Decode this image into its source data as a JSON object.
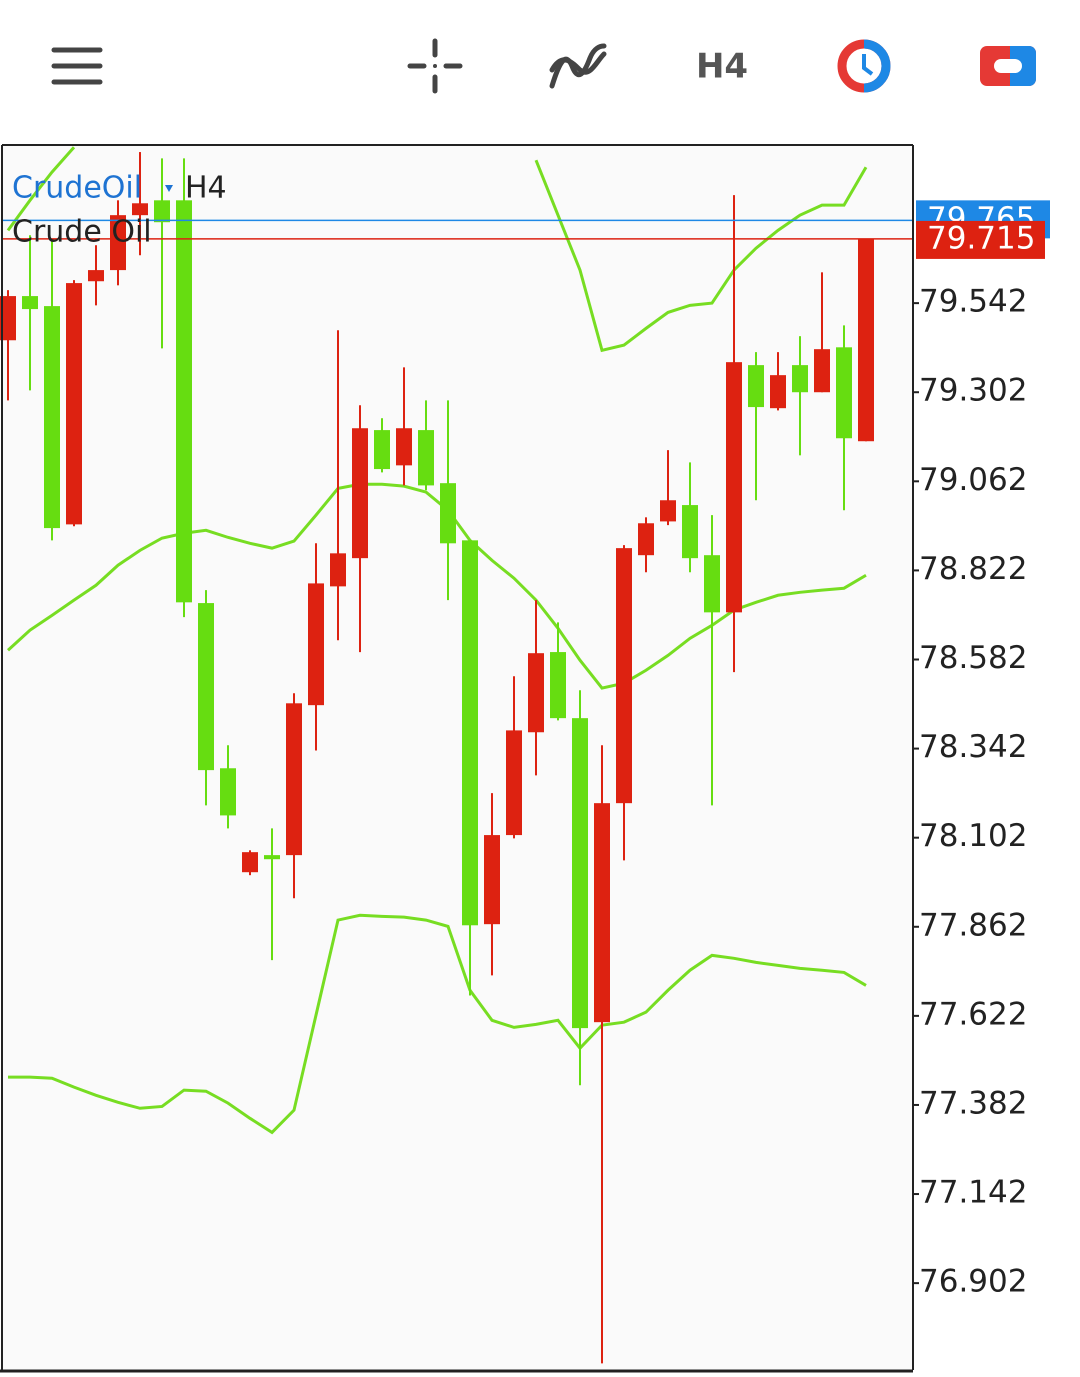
{
  "toolbar": {
    "timeframe": "H4"
  },
  "chart_data": {
    "type": "candlestick",
    "symbol": "CrudeOil",
    "timeframe": "H4",
    "subtitle": "Crude Oil",
    "up_color": "#dd2211",
    "down_color": "#66dd11",
    "band_color": "#77dd22",
    "open": [
      79.442,
      79.561,
      79.534,
      78.946,
      79.601,
      79.631,
      79.779,
      79.819,
      79.819,
      78.734,
      78.289,
      78.009,
      78.055,
      78.055,
      78.459,
      78.779,
      78.855,
      79.2,
      79.105,
      79.2,
      79.057,
      78.903,
      77.869,
      78.109,
      78.386,
      78.602,
      78.424,
      77.605,
      78.195,
      78.863,
      78.954,
      78.998,
      78.863,
      78.709,
      79.375,
      79.259,
      79.375,
      79.302,
      79.423,
      79.17
    ],
    "high": [
      79.577,
      79.725,
      79.711,
      79.604,
      79.698,
      79.819,
      79.949,
      79.932,
      79.932,
      78.769,
      78.351,
      78.068,
      78.127,
      78.491,
      78.895,
      79.469,
      79.267,
      79.232,
      79.369,
      79.28,
      79.28,
      78.903,
      78.222,
      78.537,
      78.742,
      78.682,
      78.499,
      78.351,
      78.89,
      78.965,
      79.146,
      79.113,
      78.971,
      79.833,
      79.41,
      79.41,
      79.453,
      79.625,
      79.482,
      79.715
    ],
    "low": [
      79.28,
      79.307,
      78.903,
      78.941,
      79.536,
      79.59,
      79.671,
      79.42,
      78.696,
      78.189,
      78.127,
      78.001,
      77.772,
      77.939,
      78.337,
      78.634,
      78.602,
      79.086,
      79.051,
      79.038,
      78.742,
      77.677,
      77.731,
      78.1,
      78.27,
      78.418,
      77.435,
      76.686,
      78.041,
      78.817,
      78.944,
      78.817,
      78.189,
      78.548,
      79.011,
      79.253,
      79.132,
      79.302,
      78.984,
      79.17
    ],
    "close": [
      79.561,
      79.526,
      78.936,
      79.596,
      79.631,
      79.779,
      79.811,
      79.76,
      78.736,
      78.284,
      78.162,
      78.063,
      78.044,
      78.464,
      78.787,
      78.868,
      79.205,
      79.095,
      79.205,
      79.051,
      78.895,
      77.866,
      78.109,
      78.391,
      78.599,
      78.424,
      77.589,
      78.195,
      78.882,
      78.949,
      79.011,
      78.855,
      78.709,
      79.383,
      79.262,
      79.348,
      79.302,
      79.418,
      79.178,
      79.715
    ],
    "bands": [
      {
        "values": [
          79.738,
          79.819,
          79.895,
          79.962,
          null,
          null,
          null,
          null,
          null,
          null,
          null,
          null,
          null,
          null,
          null,
          null,
          null,
          null,
          null,
          null,
          null,
          null,
          null,
          null,
          79.927,
          79.779,
          79.631,
          79.415,
          79.429,
          79.474,
          79.517,
          79.536,
          79.542,
          79.631,
          79.69,
          79.738,
          79.779,
          79.806,
          79.806,
          79.908
        ]
      },
      {
        "values": [
          78.607,
          78.661,
          78.701,
          78.742,
          78.782,
          78.836,
          78.876,
          78.909,
          78.922,
          78.93,
          78.911,
          78.895,
          78.882,
          78.901,
          78.971,
          79.043,
          79.054,
          79.054,
          79.049,
          79.033,
          78.984,
          78.903,
          78.849,
          78.801,
          78.742,
          78.666,
          78.58,
          78.505,
          78.518,
          78.553,
          78.593,
          78.639,
          78.674,
          78.715,
          78.736,
          78.755,
          78.763,
          78.769,
          78.774,
          78.809
        ]
      },
      {
        "values": [
          77.457,
          77.457,
          77.454,
          77.43,
          77.408,
          77.389,
          77.373,
          77.378,
          77.422,
          77.419,
          77.387,
          77.346,
          77.308,
          77.368,
          77.624,
          77.88,
          77.893,
          77.89,
          77.888,
          77.88,
          77.863,
          77.691,
          77.61,
          77.591,
          77.599,
          77.61,
          77.535,
          77.597,
          77.605,
          77.632,
          77.691,
          77.745,
          77.785,
          77.777,
          77.766,
          77.758,
          77.75,
          77.745,
          77.739,
          77.704
        ]
      }
    ],
    "ask": 79.765,
    "ask_color": "#1e88e5",
    "bid": 79.715,
    "bid_color": "#dd2211",
    "ylim": [
      76.668,
      79.968
    ],
    "yticks": [
      79.542,
      79.302,
      79.062,
      78.822,
      78.582,
      78.342,
      78.102,
      77.862,
      77.622,
      77.382,
      77.142,
      76.902
    ]
  }
}
